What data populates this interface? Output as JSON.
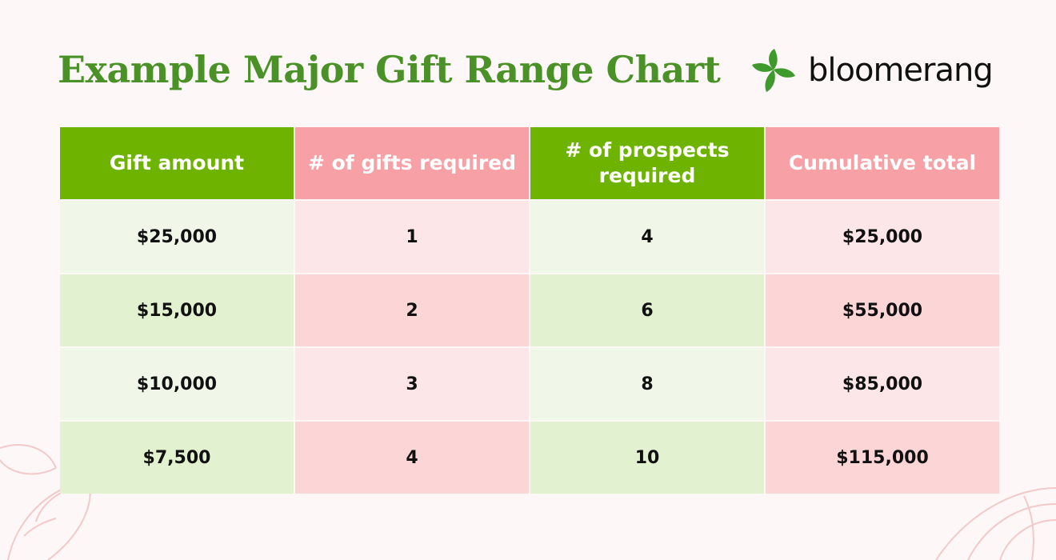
{
  "title": "Example Major Gift Range Chart",
  "logo": {
    "wordmark": "bloomerang",
    "mark_icon": "leaf-pinwheel-icon",
    "mark_color": "#3f9a2e"
  },
  "colors": {
    "title": "#4a9228",
    "header_green": "#6db300",
    "header_pink": "#f7a1a6",
    "row_light_green": "#f0f7e9",
    "row_light_pink": "#fce6e7",
    "row_green": "#e2f1d0",
    "row_pink": "#fcd6d7"
  },
  "chart_data": {
    "type": "table",
    "columns": [
      "Gift amount",
      "# of gifts required",
      "# of prospects required",
      "Cumulative total"
    ],
    "rows": [
      [
        "$25,000",
        "1",
        "4",
        "$25,000"
      ],
      [
        "$15,000",
        "2",
        "6",
        "$55,000"
      ],
      [
        "$10,000",
        "3",
        "8",
        "$85,000"
      ],
      [
        "$7,500",
        "4",
        "10",
        "$115,000"
      ]
    ]
  }
}
